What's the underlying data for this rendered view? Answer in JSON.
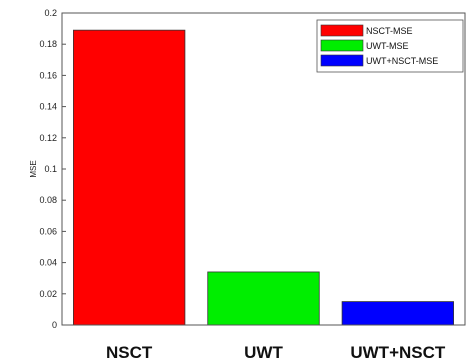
{
  "chart_data": {
    "type": "bar",
    "categories": [
      "NSCT",
      "UWT",
      "UWT+NSCT"
    ],
    "series": [
      {
        "name": "NSCT-MSE",
        "values": [
          0.189,
          null,
          null
        ],
        "color": "#ff0000"
      },
      {
        "name": "UWT-MSE",
        "values": [
          null,
          0.034,
          null
        ],
        "color": "#00ee00"
      },
      {
        "name": "UWT+NSCT-MSE",
        "values": [
          null,
          null,
          0.015
        ],
        "color": "#0000ff"
      }
    ],
    "values": [
      0.189,
      0.034,
      0.015
    ],
    "colors": [
      "#ff0000",
      "#00ee00",
      "#0000ff"
    ],
    "ylabel": "MSE",
    "ylim": [
      0,
      0.2
    ],
    "yticks": [
      "0",
      "0.02",
      "0.04",
      "0.06",
      "0.08",
      "0.1",
      "0.12",
      "0.14",
      "0.16",
      "0.18",
      "0.2"
    ],
    "legend": {
      "placement": "top-right",
      "entries": [
        "NSCT-MSE",
        "UWT-MSE",
        "UWT+NSCT-MSE"
      ]
    },
    "grid": false
  }
}
